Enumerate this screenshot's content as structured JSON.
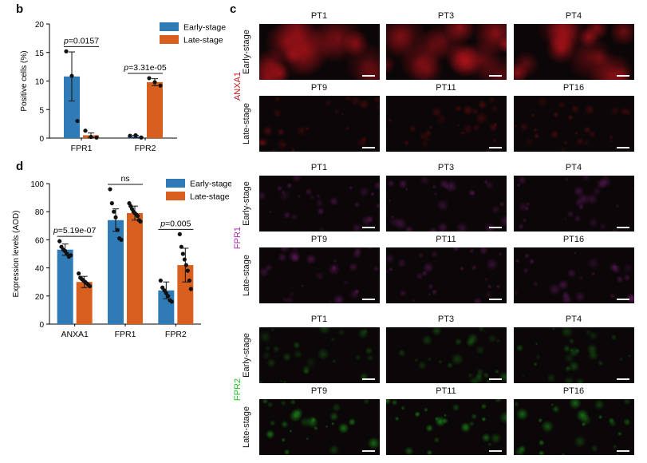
{
  "panels": {
    "b": "b",
    "c": "c",
    "d": "d"
  },
  "chart_data": [
    {
      "panel": "b",
      "type": "bar",
      "categories": [
        "FPR1",
        "FPR2"
      ],
      "ylabel": "Positive cells (%)",
      "ylim": [
        0,
        20
      ],
      "yticks": [
        "0",
        "5",
        "10",
        "15",
        "20"
      ],
      "series": [
        {
          "name": "Early-stage",
          "color": "#2e7bb6",
          "values": [
            10.8,
            0.3
          ],
          "sd": [
            4.3,
            0.2
          ],
          "points": [
            [
              15.2,
              10.9,
              3.0
            ],
            [
              0.4,
              0.5,
              0.1
            ]
          ]
        },
        {
          "name": "Late-stage",
          "color": "#d95f1e",
          "values": [
            0.5,
            9.8
          ],
          "sd": [
            0.4,
            0.6
          ],
          "points": [
            [
              1.3,
              0.2,
              0.1
            ],
            [
              10.5,
              9.8,
              9.2
            ]
          ]
        }
      ],
      "annotations": [
        {
          "category": 0,
          "text": "=0.0157"
        },
        {
          "category": 1,
          "text": "=3.31e-05"
        }
      ],
      "p_letter": "p",
      "legend": "top-right"
    },
    {
      "panel": "d",
      "type": "bar",
      "categories": [
        "ANXA1",
        "FPR1",
        "FPR2"
      ],
      "ylabel": "Expression levels (AOD)",
      "ylim": [
        0,
        100
      ],
      "yticks": [
        "0",
        "20",
        "40",
        "60",
        "80",
        "100"
      ],
      "series": [
        {
          "name": "Early-stage",
          "color": "#2e7bb6",
          "values": [
            53,
            74,
            24
          ],
          "sd": [
            4,
            8,
            6
          ],
          "points": [
            [
              59,
              55,
              53,
              52,
              50,
              48,
              49
            ],
            [
              96,
              86,
              80,
              76,
              67,
              61,
              60
            ],
            [
              31,
              26,
              24,
              22,
              20,
              17,
              16
            ]
          ]
        },
        {
          "name": "Late-stage",
          "color": "#d95f1e",
          "values": [
            30,
            79,
            42
          ],
          "sd": [
            4,
            5,
            12
          ],
          "points": [
            [
              36,
              33,
              32,
              31,
              30,
              29,
              28,
              27
            ],
            [
              86,
              84,
              82,
              80,
              79,
              78,
              77,
              74,
              73
            ],
            [
              64,
              55,
              50,
              46,
              42,
              38,
              31,
              25
            ]
          ]
        }
      ],
      "annotations": [
        {
          "category": 0,
          "text": "=5.19e-07"
        },
        {
          "category": 1,
          "text": "ns"
        },
        {
          "category": 2,
          "text": "=0.005"
        }
      ],
      "p_letter": "p",
      "legend": "top-right"
    }
  ],
  "images": {
    "marker_labels": [
      "ANXA1",
      "FPR1",
      "FPR2"
    ],
    "marker_colors": [
      "#c0141c",
      "#b02cb0",
      "#22c022"
    ],
    "stage_labels": [
      "Early-stage",
      "Late-stage"
    ],
    "early_patients": [
      "PT1",
      "PT3",
      "PT4"
    ],
    "late_patients": [
      "PT9",
      "PT11",
      "PT16"
    ]
  }
}
